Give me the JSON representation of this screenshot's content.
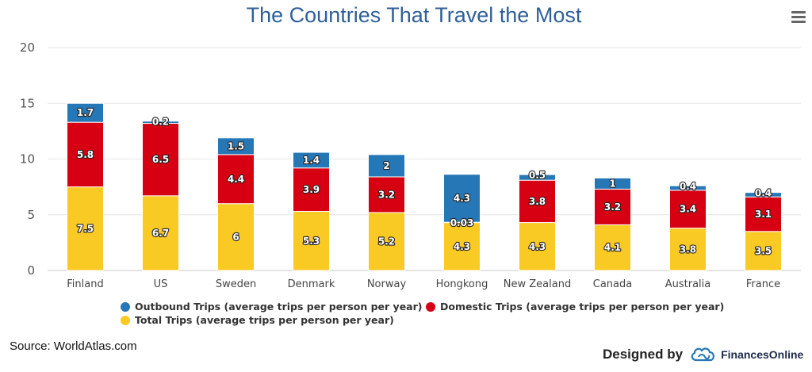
{
  "chart_data": {
    "type": "bar",
    "stacked": true,
    "title": "The Countries That Travel the Most",
    "xlabel": "",
    "ylabel": "",
    "ylim": [
      0,
      20
    ],
    "yticks": [
      "0",
      "5",
      "10",
      "15",
      "20"
    ],
    "grid": true,
    "legend_position": "bottom",
    "categories": [
      "Finland",
      "US",
      "Sweden",
      "Denmark",
      "Norway",
      "Hongkong",
      "New Zealand",
      "Canada",
      "Australia",
      "France"
    ],
    "series": [
      {
        "name": "Total Trips (average trips per person per year)",
        "color": "#f9c924",
        "values": [
          7.5,
          6.7,
          6,
          5.3,
          5.2,
          4.3,
          4.3,
          4.1,
          3.8,
          3.5
        ]
      },
      {
        "name": "Domestic Trips (average trips per person per year)",
        "color": "#d60012",
        "values": [
          5.8,
          6.5,
          4.4,
          3.9,
          3.2,
          0.03,
          3.8,
          3.2,
          3.4,
          3.1
        ]
      },
      {
        "name": "Outbound Trips (average trips per person per year)",
        "color": "#2577b5",
        "values": [
          1.7,
          0.2,
          1.5,
          1.4,
          2,
          4.3,
          0.5,
          1,
          0.4,
          0.4
        ]
      }
    ],
    "legend_order": [
      2,
      1,
      0
    ]
  },
  "footer": {
    "source": "Source: WorldAtlas.com",
    "designed_by": "Designed by",
    "brand": "FinancesOnline"
  },
  "icons": {
    "menu": "hamburger-menu-icon",
    "logo": "financesonline-logo-icon"
  }
}
